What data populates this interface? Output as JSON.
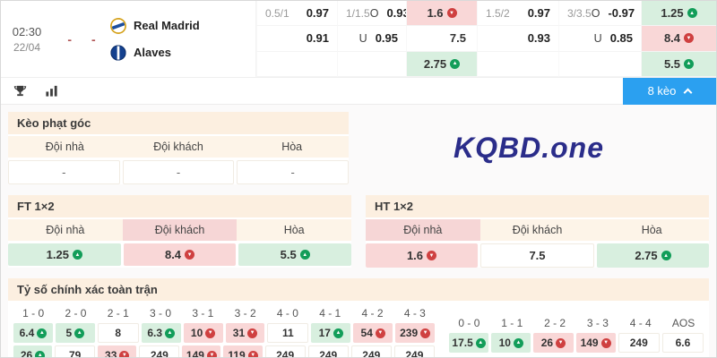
{
  "colors": {
    "accent_blue": "#2ba0f0",
    "green_bg": "#d8efdf",
    "red_bg": "#f9d7d7",
    "panel_header": "#fcefe0",
    "logo_navy": "#2b2d8a"
  },
  "match": {
    "time": "02:30",
    "date": "22/04",
    "score_home": "-",
    "score_away": "-",
    "home_team": "Real Madrid",
    "away_team": "Alaves",
    "odds": {
      "hc1": {
        "line": "0.5/1",
        "home": "0.97",
        "away": "0.91"
      },
      "ou1": {
        "line": "1/1.5",
        "over_label": "O",
        "over": "0.93",
        "under_label": "U",
        "under": "0.95"
      },
      "x1": {
        "home": {
          "value": "1.6",
          "dir": "down",
          "style": "red"
        },
        "away": {
          "value": "7.5",
          "style": "plain"
        },
        "draw": {
          "value": "2.75",
          "dir": "up",
          "style": "green"
        }
      },
      "hc2": {
        "line": "1.5/2",
        "home": "0.97",
        "away": "0.93"
      },
      "ou2": {
        "line": "3/3.5",
        "over_label": "O",
        "over": "-0.97",
        "under_label": "U",
        "under": "0.85"
      },
      "x2": {
        "home": {
          "value": "1.25",
          "dir": "up",
          "style": "green"
        },
        "away": {
          "value": "8.4",
          "dir": "down",
          "style": "red"
        },
        "draw": {
          "value": "5.5",
          "dir": "up",
          "style": "green"
        }
      }
    }
  },
  "toolbar": {
    "keo_button": "8 kèo"
  },
  "corner_panel": {
    "title": "Kèo phạt góc",
    "headers": [
      "Đội nhà",
      "Đội khách",
      "Hòa"
    ],
    "values": [
      "-",
      "-",
      "-"
    ]
  },
  "logo": {
    "text": "KQBD.one"
  },
  "ft_panel": {
    "title": "FT 1×2",
    "headers": [
      "Đội nhà",
      "Đội khách",
      "Hòa"
    ],
    "values": {
      "home": {
        "value": "1.25",
        "dir": "up",
        "style": "green"
      },
      "away": {
        "value": "8.4",
        "dir": "down",
        "style": "red"
      },
      "draw": {
        "value": "5.5",
        "dir": "up",
        "style": "green"
      }
    }
  },
  "ht_panel": {
    "title": "HT 1×2",
    "headers": [
      "Đội nhà",
      "Đội khách",
      "Hòa"
    ],
    "values": {
      "home": {
        "value": "1.6",
        "dir": "down",
        "style": "red"
      },
      "away": {
        "value": "7.5",
        "style": "plain"
      },
      "draw": {
        "value": "2.75",
        "dir": "up",
        "style": "green"
      }
    }
  },
  "score_panel": {
    "title": "Tỷ số chính xác toàn trận",
    "left": {
      "headers": [
        "1 - 0",
        "2 - 0",
        "2 - 1",
        "3 - 0",
        "3 - 1",
        "3 - 2",
        "4 - 0",
        "4 - 1",
        "4 - 2",
        "4 - 3"
      ],
      "rows": [
        [
          {
            "value": "6.4",
            "dir": "up",
            "style": "green"
          },
          {
            "value": "5",
            "dir": "up",
            "style": "green"
          },
          {
            "value": "8",
            "style": "plain"
          },
          {
            "value": "6.3",
            "dir": "up",
            "style": "green"
          },
          {
            "value": "10",
            "dir": "down",
            "style": "red"
          },
          {
            "value": "31",
            "dir": "down",
            "style": "red"
          },
          {
            "value": "11",
            "style": "plain"
          },
          {
            "value": "17",
            "dir": "up",
            "style": "green"
          },
          {
            "value": "54",
            "dir": "down",
            "style": "red"
          },
          {
            "value": "239",
            "dir": "down",
            "style": "red"
          }
        ],
        [
          {
            "value": "26",
            "dir": "up",
            "style": "green"
          },
          {
            "value": "79",
            "style": "plain"
          },
          {
            "value": "33",
            "dir": "down",
            "style": "red"
          },
          {
            "value": "249",
            "style": "plain"
          },
          {
            "value": "149",
            "dir": "down",
            "style": "red"
          },
          {
            "value": "119",
            "dir": "down",
            "style": "red"
          },
          {
            "value": "249",
            "style": "plain"
          },
          {
            "value": "249",
            "style": "plain"
          },
          {
            "value": "249",
            "style": "plain"
          },
          {
            "value": "249",
            "style": "plain"
          }
        ]
      ]
    },
    "right": {
      "headers": [
        "0 - 0",
        "1 - 1",
        "2 - 2",
        "3 - 3",
        "4 - 4",
        "AOS"
      ],
      "rows": [
        [
          {
            "value": "17.5",
            "dir": "up",
            "style": "green"
          },
          {
            "value": "10",
            "dir": "up",
            "style": "green"
          },
          {
            "value": "26",
            "dir": "down",
            "style": "red"
          },
          {
            "value": "149",
            "dir": "down",
            "style": "red"
          },
          {
            "value": "249",
            "style": "plain"
          },
          {
            "value": "6.6",
            "style": "plain"
          }
        ]
      ]
    }
  }
}
